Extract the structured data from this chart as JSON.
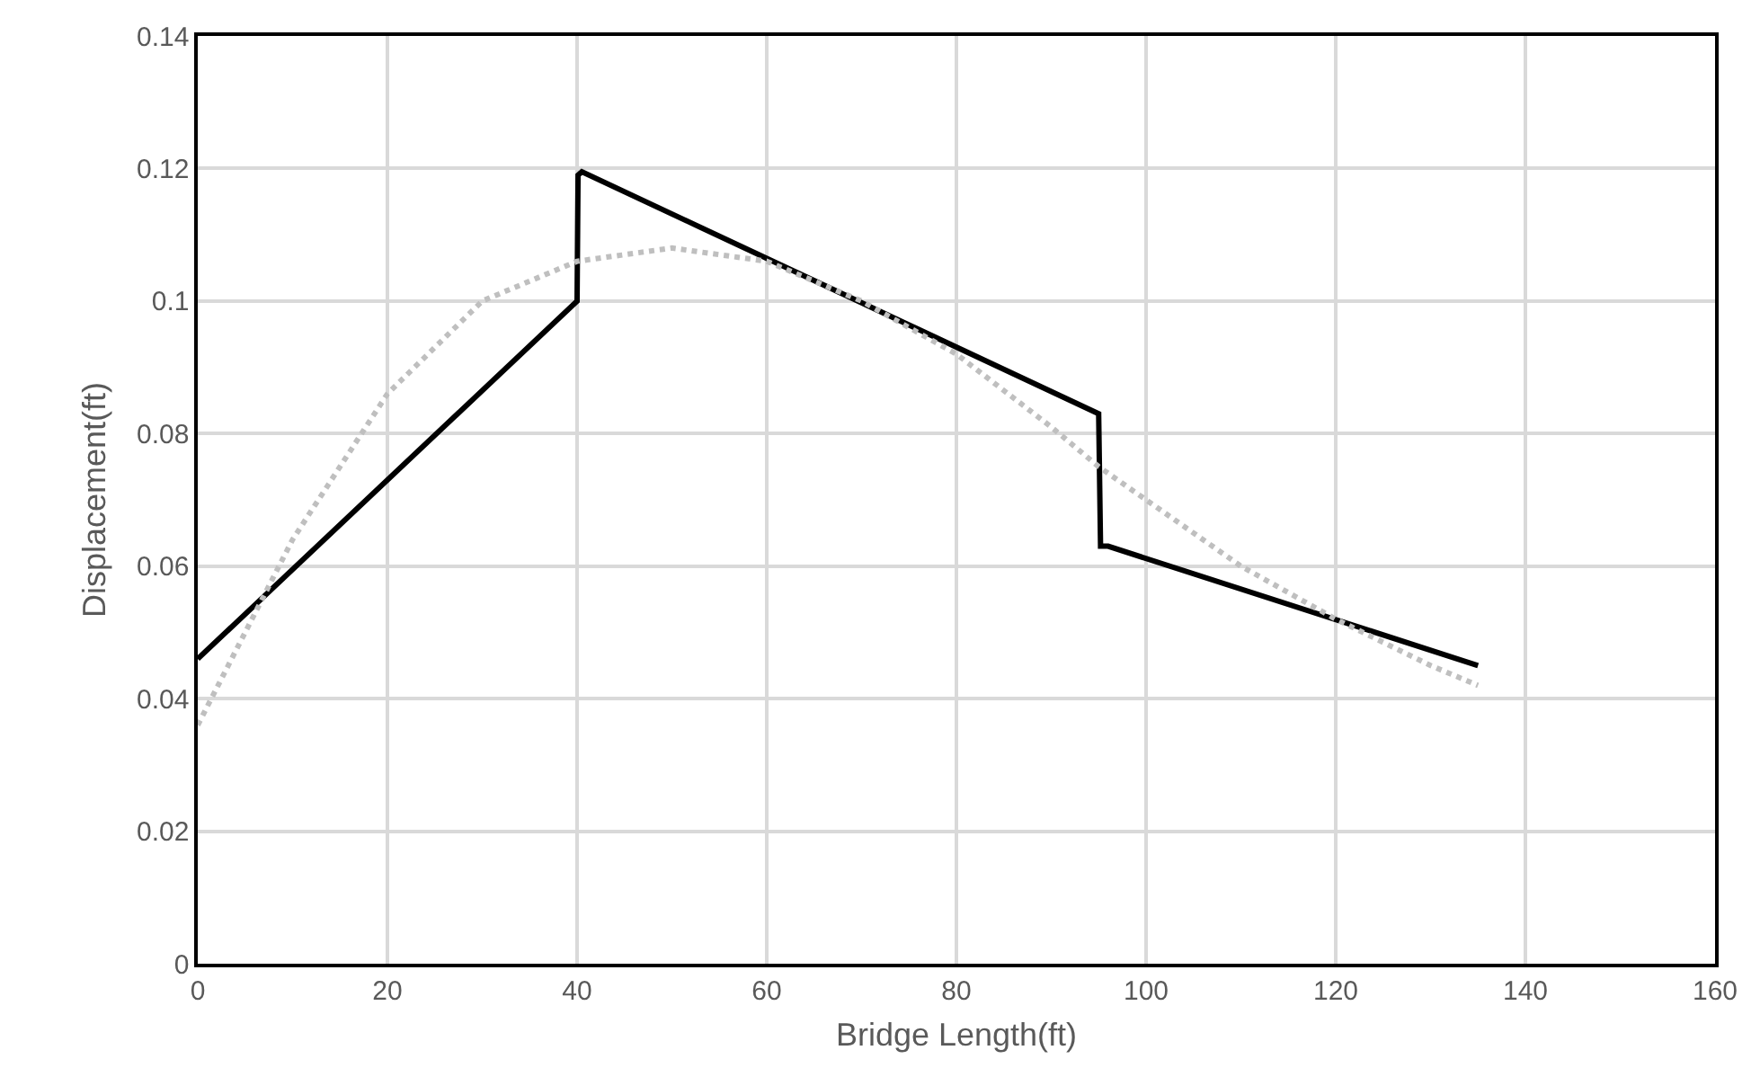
{
  "chart_data": {
    "type": "line",
    "xlabel": "Bridge Length(ft)",
    "ylabel": "Displacement(ft)",
    "xlim": [
      0,
      160
    ],
    "xticks": [
      0,
      20,
      40,
      60,
      80,
      100,
      120,
      140,
      160
    ],
    "ylim": [
      0,
      0.14
    ],
    "yticks": [
      {
        "value": 0,
        "label": "0"
      },
      {
        "value": 0.02,
        "label": "0.02"
      },
      {
        "value": 0.04,
        "label": "0.04"
      },
      {
        "value": 0.06,
        "label": "0.06"
      },
      {
        "value": 0.08,
        "label": "0.08"
      },
      {
        "value": 0.1,
        "label": "0.1"
      },
      {
        "value": 0.12,
        "label": "0.12"
      },
      {
        "value": 0.14,
        "label": "0.14"
      }
    ],
    "grid": true,
    "marker": "none",
    "series": [
      {
        "color": "#000000",
        "line_style": "solid",
        "x": [
          0,
          40,
          40.1,
          40.5,
          95,
          95.2,
          96,
          135
        ],
        "values": [
          0.046,
          0.1,
          0.119,
          0.1195,
          0.083,
          0.063,
          0.063,
          0.045
        ]
      },
      {
        "color": "#bfbfbf",
        "line_style": "dotted",
        "x": [
          0,
          5,
          10,
          20,
          30,
          40,
          50,
          60,
          70,
          80,
          90,
          95,
          100,
          110,
          120,
          130,
          135
        ],
        "values": [
          0.036,
          0.05,
          0.064,
          0.086,
          0.1,
          0.106,
          0.108,
          0.106,
          0.1,
          0.092,
          0.081,
          0.075,
          0.07,
          0.06,
          0.052,
          0.045,
          0.042
        ]
      }
    ]
  }
}
